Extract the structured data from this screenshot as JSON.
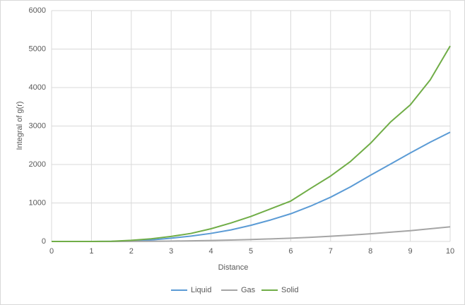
{
  "chart_data": {
    "type": "line",
    "x_label": "Distance",
    "y_label": "Integral of g(r)",
    "x": [
      0,
      0.5,
      1,
      1.5,
      2,
      2.5,
      3,
      3.5,
      4,
      4.5,
      5,
      5.5,
      6,
      6.5,
      7,
      7.5,
      8,
      8.5,
      9,
      9.5,
      10
    ],
    "series": [
      {
        "name": "Liquid",
        "color": "#5b9bd5",
        "values": [
          0,
          0,
          0,
          2,
          15,
          40,
          85,
          140,
          210,
          300,
          420,
          560,
          720,
          920,
          1150,
          1420,
          1720,
          2010,
          2300,
          2580,
          2840
        ]
      },
      {
        "name": "Gas",
        "color": "#a5a5a5",
        "values": [
          0,
          0,
          0,
          0,
          2,
          5,
          10,
          16,
          25,
          36,
          50,
          66,
          85,
          108,
          135,
          165,
          200,
          240,
          280,
          330,
          380
        ]
      },
      {
        "name": "Solid",
        "color": "#70ad47",
        "values": [
          0,
          0,
          0,
          5,
          30,
          70,
          130,
          210,
          330,
          480,
          650,
          850,
          1050,
          1380,
          1700,
          2080,
          2550,
          3100,
          3550,
          4200,
          5080
        ]
      }
    ],
    "xlim": [
      0,
      10
    ],
    "xticks": [
      0,
      1,
      2,
      3,
      4,
      5,
      6,
      7,
      8,
      9,
      10
    ],
    "ylim": [
      0,
      6000
    ],
    "yticks": [
      0,
      1000,
      2000,
      3000,
      4000,
      5000,
      6000
    ],
    "grid": true,
    "legend": "bottom"
  }
}
